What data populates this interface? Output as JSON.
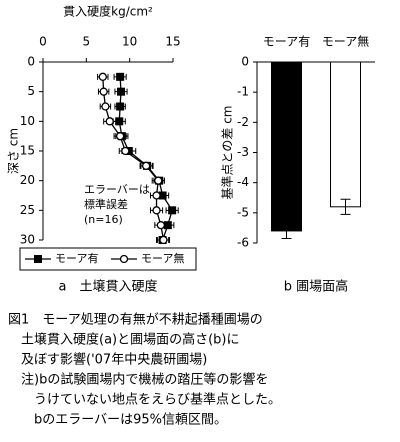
{
  "chart_data": [
    {
      "type": "line",
      "xlabel": "貫入硬度kg/cm²",
      "ylabel": "深さ cm",
      "xlim": [
        0,
        15
      ],
      "xticks": [
        0,
        5,
        10,
        15
      ],
      "ylim": [
        0,
        30
      ],
      "yticks": [
        0,
        5,
        10,
        15,
        20,
        25,
        30
      ],
      "y_inverted": true,
      "depth": [
        2.5,
        5,
        7.5,
        10,
        12.5,
        15,
        17.5,
        20,
        22.5,
        25,
        27.5,
        30
      ],
      "series": [
        {
          "name": "モーア有",
          "marker": "square",
          "color": "#000000",
          "values": [
            8.9,
            9.0,
            8.9,
            8.8,
            9.1,
            9.9,
            12.0,
            13.4,
            13.8,
            14.9,
            14.4,
            13.8
          ],
          "errors": [
            0.7,
            0.7,
            0.6,
            0.7,
            0.7,
            0.8,
            0.7,
            0.6,
            0.7,
            0.7,
            0.7,
            0.7
          ]
        },
        {
          "name": "モーア無",
          "marker": "circle",
          "color": "#000000",
          "values": [
            6.9,
            7.0,
            7.2,
            7.7,
            8.9,
            9.5,
            11.9,
            13.3,
            13.1,
            13.1,
            13.6,
            13.9
          ],
          "errors": [
            0.6,
            0.6,
            0.6,
            0.7,
            0.7,
            0.7,
            0.7,
            0.7,
            0.7,
            0.7,
            0.7,
            0.7
          ]
        }
      ],
      "annotation": [
        "エラーバーは",
        "標準誤差",
        "(n=16)"
      ],
      "legend": "bottom",
      "caption": "a　土壌貫入硬度"
    },
    {
      "type": "bar",
      "categories": [
        "モーア有",
        "モーア無"
      ],
      "values": [
        -5.6,
        -4.8
      ],
      "errors": [
        0.25,
        0.25
      ],
      "colors": [
        "#000000",
        "#ffffff"
      ],
      "ylabel": "基準点との差 cm",
      "ylim": [
        -6,
        0
      ],
      "yticks": [
        0,
        -1,
        -2,
        -3,
        -4,
        -5,
        -6
      ],
      "caption": "b 圃場面高"
    }
  ],
  "figure_caption": [
    "図1　モーア処理の有無が不耕起播種圃場の",
    "　土壌貫入硬度(a)と圃場面の高さ(b)に",
    "　及ぼす影響('07年中央農研圃場)",
    "　注)bの試験圃場内で機械の踏圧等の影響を",
    "　　うけていない地点をえらび基準点とした。",
    "　　bのエラーバーは95%信頼区間。"
  ]
}
